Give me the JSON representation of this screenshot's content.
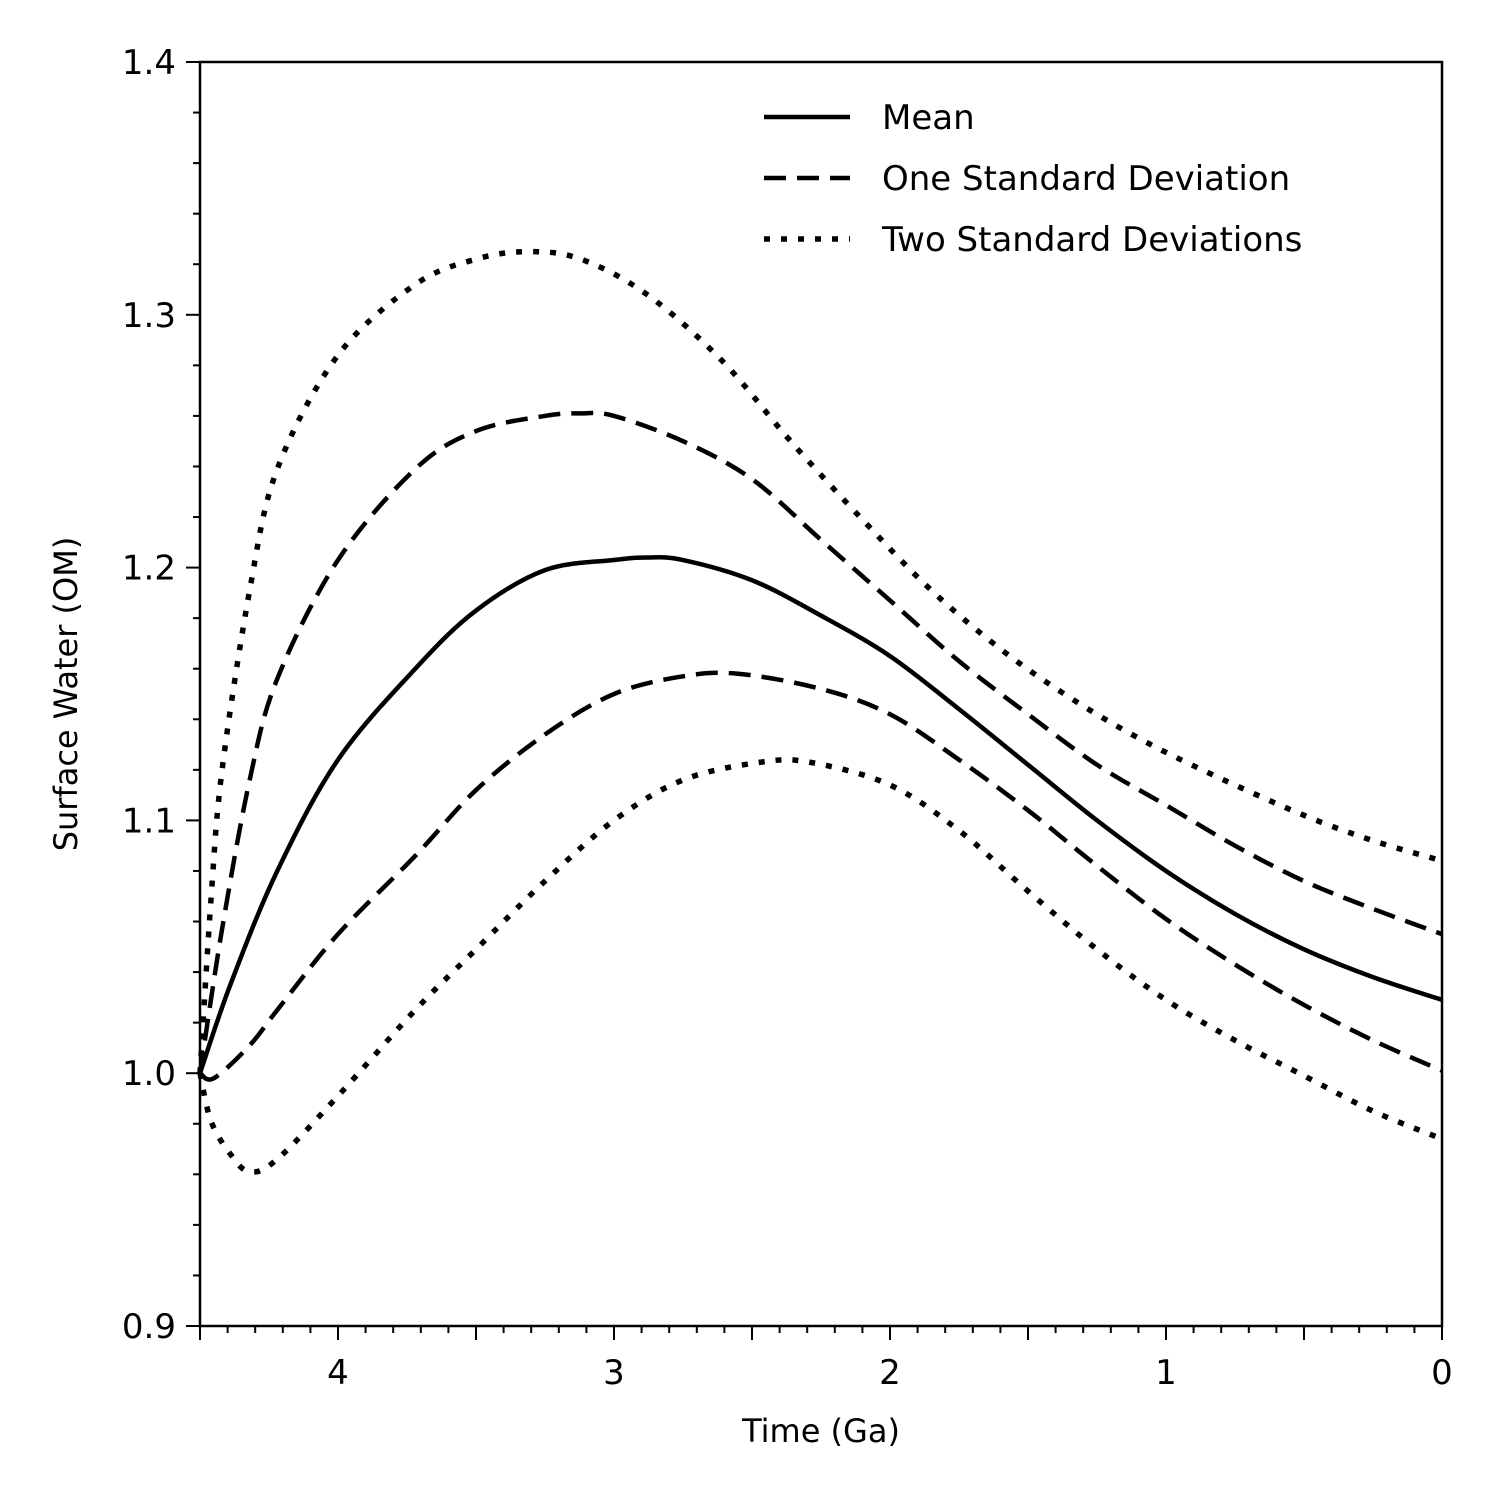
{
  "chart_data": {
    "type": "line",
    "title": "",
    "xlabel": "Time (Ga)",
    "ylabel": "Surface Water (OM)",
    "xlim": [
      4.5,
      0
    ],
    "ylim": [
      0.9,
      1.4
    ],
    "x_inverted": true,
    "grid": false,
    "legend_position": "top-right",
    "x_ticks": [
      4,
      3,
      2,
      1,
      0
    ],
    "x_tick_labels": [
      "4",
      "3",
      "2",
      "1",
      "0"
    ],
    "x_minor_step": 0.1,
    "y_ticks": [
      0.9,
      1.0,
      1.1,
      1.2,
      1.3,
      1.4
    ],
    "y_tick_labels": [
      "0.9",
      "1.0",
      "1.1",
      "1.2",
      "1.3",
      "1.4"
    ],
    "y_minor_step": 0.02,
    "series": [
      {
        "name": "Mean",
        "style": "solid",
        "color": "#000000",
        "x": [
          4.5,
          4.39,
          4.22,
          4.0,
          3.72,
          3.5,
          3.25,
          3.0,
          2.88,
          2.75,
          2.5,
          2.25,
          2.0,
          1.75,
          1.5,
          1.25,
          1.0,
          0.75,
          0.5,
          0.25,
          0.0
        ],
        "y": [
          1.0,
          1.035,
          1.08,
          1.124,
          1.16,
          1.183,
          1.199,
          1.203,
          1.204,
          1.203,
          1.195,
          1.181,
          1.165,
          1.144,
          1.122,
          1.1,
          1.08,
          1.063,
          1.049,
          1.038,
          1.029
        ]
      },
      {
        "name": "One Standard Deviation (upper)",
        "legend_label": "One Standard Deviation",
        "style": "dashed",
        "color": "#000000",
        "x": [
          4.5,
          4.42,
          4.32,
          4.22,
          4.0,
          3.72,
          3.5,
          3.25,
          3.12,
          3.0,
          2.75,
          2.5,
          2.25,
          2.0,
          1.75,
          1.5,
          1.25,
          1.0,
          0.75,
          0.5,
          0.25,
          0.0
        ],
        "y": [
          1.0,
          1.057,
          1.116,
          1.156,
          1.203,
          1.239,
          1.254,
          1.26,
          1.261,
          1.26,
          1.25,
          1.235,
          1.211,
          1.187,
          1.163,
          1.142,
          1.122,
          1.106,
          1.09,
          1.076,
          1.065,
          1.055
        ]
      },
      {
        "name": "One Standard Deviation (lower)",
        "style": "dashed",
        "color": "#000000",
        "x": [
          4.5,
          4.45,
          4.32,
          4.22,
          4.0,
          3.72,
          3.5,
          3.25,
          3.0,
          2.75,
          2.55,
          2.25,
          2.0,
          1.75,
          1.5,
          1.25,
          1.0,
          0.75,
          0.5,
          0.25,
          0.0
        ],
        "y": [
          1.0,
          0.998,
          1.011,
          1.025,
          1.055,
          1.086,
          1.112,
          1.134,
          1.15,
          1.157,
          1.158,
          1.152,
          1.142,
          1.124,
          1.104,
          1.082,
          1.061,
          1.043,
          1.027,
          1.013,
          1.001
        ]
      },
      {
        "name": "Two Standard Deviations (upper)",
        "legend_label": "Two Standard Deviations",
        "style": "dotted",
        "color": "#000000",
        "x": [
          4.5,
          4.46,
          4.42,
          4.32,
          4.22,
          4.0,
          3.72,
          3.5,
          3.31,
          3.12,
          2.88,
          2.61,
          2.36,
          2.1,
          1.85,
          1.59,
          1.34,
          1.09,
          0.83,
          0.5,
          0.25,
          0.0
        ],
        "y": [
          1.0,
          1.069,
          1.12,
          1.191,
          1.239,
          1.284,
          1.312,
          1.322,
          1.325,
          1.322,
          1.308,
          1.282,
          1.25,
          1.219,
          1.191,
          1.167,
          1.148,
          1.132,
          1.118,
          1.102,
          1.092,
          1.084
        ]
      },
      {
        "name": "Two Standard Deviations (lower)",
        "style": "dotted",
        "color": "#000000",
        "x": [
          4.5,
          4.46,
          4.39,
          4.32,
          4.22,
          4.0,
          3.72,
          3.5,
          3.25,
          3.0,
          2.75,
          2.47,
          2.29,
          2.0,
          1.75,
          1.5,
          1.25,
          1.0,
          0.75,
          0.5,
          0.25,
          0.0
        ],
        "y": [
          1.0,
          0.981,
          0.968,
          0.961,
          0.966,
          0.991,
          1.025,
          1.049,
          1.076,
          1.1,
          1.116,
          1.123,
          1.123,
          1.114,
          1.096,
          1.072,
          1.049,
          1.029,
          1.013,
          0.999,
          0.985,
          0.974
        ]
      }
    ],
    "legend": [
      {
        "label": "Mean",
        "style": "solid"
      },
      {
        "label": "One Standard Deviation",
        "style": "dashed"
      },
      {
        "label": "Two Standard Deviations",
        "style": "dotted"
      }
    ]
  }
}
